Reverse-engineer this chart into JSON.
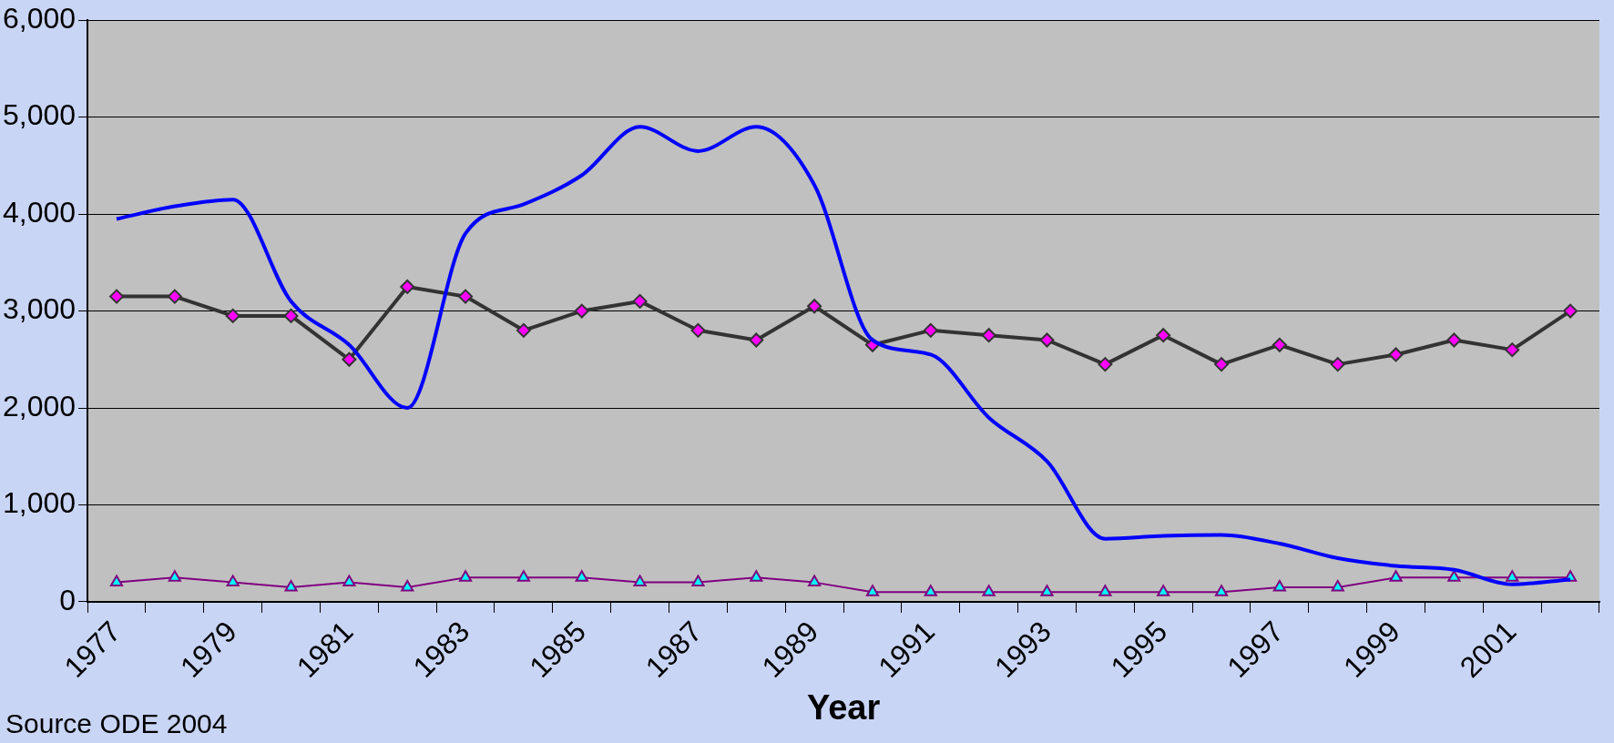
{
  "chart_data": {
    "type": "line",
    "categories": [
      "1977",
      null,
      "1979",
      null,
      "1981",
      null,
      "1983",
      null,
      "1985",
      null,
      "1987",
      null,
      "1989",
      null,
      "1991",
      null,
      "1993",
      null,
      "1995",
      null,
      "1997",
      null,
      "1999",
      null,
      "2001",
      null
    ],
    "series": [
      {
        "color": "#0000ff",
        "marker": "none",
        "values": [
          3950,
          4080,
          4150,
          3100,
          2650,
          2000,
          3800,
          4100,
          4400,
          4900,
          4650,
          4900,
          4300,
          2700,
          2550,
          1900,
          1450,
          650,
          680,
          690,
          600,
          450,
          370,
          330,
          180,
          230
        ]
      },
      {
        "color": "#333333",
        "marker": "diamond",
        "values": [
          3150,
          3150,
          2950,
          2950,
          2500,
          3250,
          3150,
          2800,
          3000,
          3100,
          2800,
          2700,
          3050,
          2650,
          2800,
          2750,
          2700,
          2450,
          2750,
          2450,
          2650,
          2450,
          2550,
          2700,
          2600,
          3000
        ]
      },
      {
        "color": "#800080",
        "marker": "triangle",
        "values": [
          200,
          250,
          200,
          150,
          200,
          150,
          250,
          250,
          250,
          200,
          200,
          250,
          200,
          100,
          100,
          100,
          100,
          100,
          100,
          100,
          150,
          150,
          250,
          250,
          250,
          250
        ]
      }
    ],
    "xlabel": "Year",
    "ylim": [
      0,
      6000
    ],
    "yticks": [
      0,
      {
        "value": 1000,
        "label": "1,000"
      },
      {
        "value": 2000,
        "label": "2,000"
      },
      {
        "value": 3000,
        "label": "3,000"
      },
      {
        "value": 4000,
        "label": "4,000"
      },
      {
        "value": 5000,
        "label": "5,000"
      },
      {
        "value": 6000,
        "label": "6,000"
      }
    ],
    "grid": "y",
    "legend": false,
    "annotations": [
      "Source ODE 2004"
    ]
  }
}
